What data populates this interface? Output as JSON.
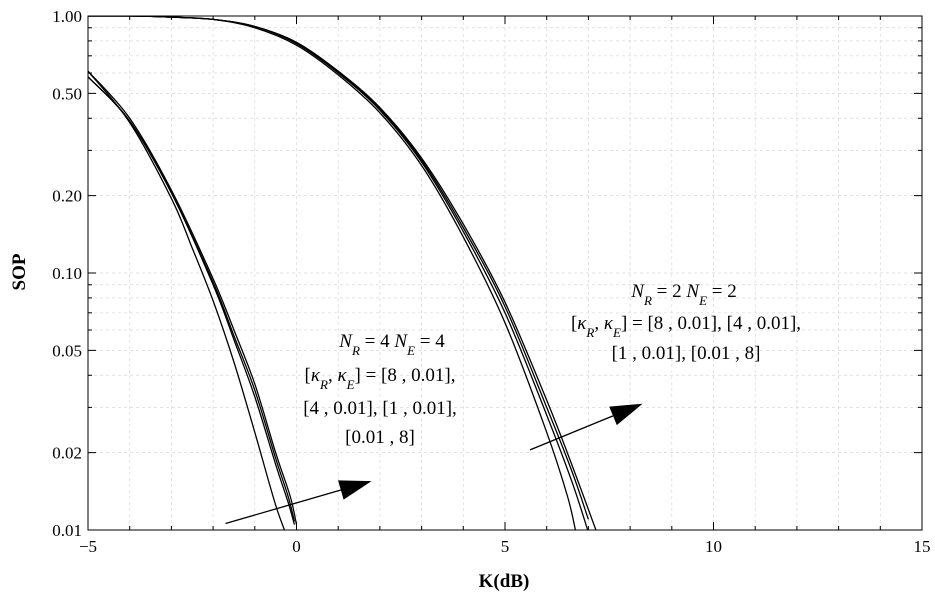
{
  "chart_data": {
    "type": "line",
    "title": "",
    "xlabel": "K(dB)",
    "ylabel": "SOP",
    "xlim": [
      -5,
      15
    ],
    "ylim": [
      0.01,
      1.0
    ],
    "yscale": "log",
    "grid": true,
    "x_ticks": [
      -5,
      0,
      5,
      10,
      15
    ],
    "x_tick_labels": [
      "−5",
      "0",
      "5",
      "10",
      "15"
    ],
    "y_ticks": [
      0.01,
      0.02,
      0.05,
      0.1,
      0.2,
      0.5,
      1.0
    ],
    "y_tick_labels": [
      "0.01",
      "0.02",
      "0.05",
      "0.10",
      "0.20",
      "0.50",
      "1.00"
    ],
    "line_color": "#000000",
    "series": [
      {
        "group": "NR4_NE4",
        "kappa": "[8 , 0.01]",
        "x": [
          -5,
          -4,
          -3,
          -2,
          -1.5,
          -1,
          -0.5,
          -0.2,
          -0.05
        ],
        "y": [
          0.58,
          0.39,
          0.205,
          0.09,
          0.055,
          0.033,
          0.018,
          0.0128,
          0.0105
        ]
      },
      {
        "group": "NR4_NE4",
        "kappa": "[4 , 0.01]",
        "x": [
          -5,
          -4,
          -3,
          -2,
          -1.5,
          -1,
          -0.5,
          -0.2,
          -0.05
        ],
        "y": [
          0.58,
          0.39,
          0.205,
          0.092,
          0.057,
          0.035,
          0.019,
          0.0135,
          0.0108
        ]
      },
      {
        "group": "NR4_NE4",
        "kappa": "[1 , 0.01]",
        "x": [
          -5,
          -4,
          -3,
          -2,
          -1.5,
          -1,
          -0.5,
          -0.15,
          0.0
        ],
        "y": [
          0.61,
          0.4,
          0.21,
          0.095,
          0.06,
          0.037,
          0.02,
          0.0135,
          0.0105
        ]
      },
      {
        "group": "NR4_NE4",
        "kappa": "[0.01 , 8]",
        "x": [
          -5,
          -4,
          -3,
          -2.5,
          -2,
          -1.5,
          -1,
          -0.5,
          -0.2
        ],
        "y": [
          0.61,
          0.385,
          0.195,
          0.125,
          0.078,
          0.045,
          0.024,
          0.0125,
          0.0092
        ]
      },
      {
        "group": "NR2_NE2",
        "kappa": "[8 , 0.01]",
        "x": [
          -5,
          -4,
          -3,
          -2,
          -1,
          0,
          1,
          2,
          3,
          4,
          5,
          6,
          6.6,
          7.0
        ],
        "y": [
          1.0,
          1.0,
          0.99,
          0.97,
          0.91,
          0.78,
          0.6,
          0.43,
          0.27,
          0.145,
          0.07,
          0.028,
          0.0155,
          0.0098
        ]
      },
      {
        "group": "NR2_NE2",
        "kappa": "[4 , 0.01]",
        "x": [
          -5,
          -4,
          -3,
          -2,
          -1,
          0,
          1,
          2,
          3,
          4,
          5,
          6,
          6.6,
          7.0
        ],
        "y": [
          1.0,
          1.0,
          0.99,
          0.97,
          0.91,
          0.785,
          0.605,
          0.435,
          0.275,
          0.15,
          0.074,
          0.03,
          0.017,
          0.011
        ]
      },
      {
        "group": "NR2_NE2",
        "kappa": "[1 , 0.01]",
        "x": [
          -5,
          -4,
          -3,
          -2,
          -1,
          0,
          1,
          2,
          3,
          4,
          5,
          6,
          6.6,
          7.2
        ],
        "y": [
          1.0,
          1.0,
          0.99,
          0.97,
          0.91,
          0.79,
          0.61,
          0.44,
          0.28,
          0.155,
          0.077,
          0.032,
          0.018,
          0.0098
        ]
      },
      {
        "group": "NR2_NE2",
        "kappa": "[0.01 , 8]",
        "x": [
          -5,
          -4,
          -3,
          -2,
          -1,
          0,
          1,
          2,
          3,
          4,
          5,
          6,
          6.5,
          6.7
        ],
        "y": [
          1.0,
          1.0,
          0.99,
          0.97,
          0.9,
          0.77,
          0.59,
          0.42,
          0.262,
          0.138,
          0.064,
          0.024,
          0.0135,
          0.0098
        ]
      }
    ],
    "annotations": {
      "nr4": {
        "line1": {
          "base1": "N",
          "sub1": "R",
          "mid": " = 4  ",
          "base2": "N",
          "sub2": "E",
          "end": " = 4"
        },
        "line2": {
          "open": "[",
          "k1": "κ",
          "s1": "R",
          "sep": ", ",
          "k2": "κ",
          "s2": "E",
          "close": "] = [8 ,  0.01],"
        },
        "line3": "[4 ,  0.01], [1 ,  0.01],",
        "line4": "[0.01 ,  8]",
        "arrow": {
          "x1": -1.7,
          "y1": 0.0106,
          "x2": 1.8,
          "y2": 0.0155
        }
      },
      "nr2": {
        "line1": {
          "base1": "N",
          "sub1": "R",
          "mid": " = 2  ",
          "base2": "N",
          "sub2": "E",
          "end": " = 2"
        },
        "line2": {
          "open": "[",
          "k1": "κ",
          "s1": "R",
          "sep": ", ",
          "k2": "κ",
          "s2": "E",
          "close": "] = [8 ,  0.01], [4 ,  0.01],"
        },
        "line3": "[1 ,  0.01], [0.01 ,  8]",
        "arrow": {
          "x1": 5.6,
          "y1": 0.0205,
          "x2": 8.3,
          "y2": 0.031
        }
      }
    }
  }
}
